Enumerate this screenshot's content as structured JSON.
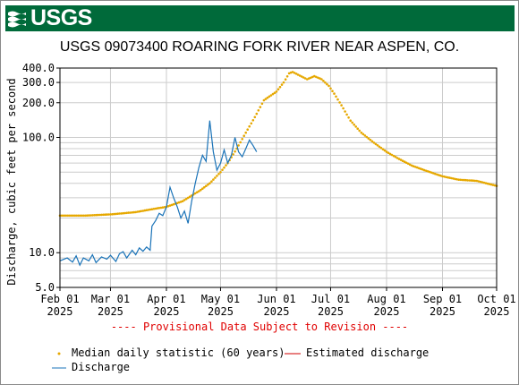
{
  "banner": {
    "logo_text": "USGS"
  },
  "title": "USGS 09073400 ROARING FORK RIVER NEAR ASPEN, CO.",
  "disclaimer": "---- Provisional Data Subject to Revision ----",
  "legend": {
    "median": "Median daily statistic (60 years)",
    "estimated": "Estimated discharge",
    "discharge": "Discharge"
  },
  "colors": {
    "median": "#e6a800",
    "discharge": "#1a73b8",
    "estimated": "#d00000",
    "banner": "#006a3a"
  },
  "chart_data": {
    "type": "line",
    "ylabel": "Discharge, cubic feet per second",
    "yscale": "log",
    "ylim": [
      5,
      400
    ],
    "y_ticks": [
      {
        "value": 5,
        "label": "5.0"
      },
      {
        "value": 10,
        "label": "10.0"
      },
      {
        "value": 100,
        "label": "100.0"
      },
      {
        "value": 200,
        "label": "200.0"
      },
      {
        "value": 300,
        "label": "300.0"
      },
      {
        "value": 400,
        "label": "400.0"
      }
    ],
    "xlim": [
      "2025-02-01",
      "2025-10-01"
    ],
    "x_ticks": [
      {
        "date": "2025-02-01",
        "label": [
          "Feb 01",
          "2025"
        ]
      },
      {
        "date": "2025-03-01",
        "label": [
          "Mar 01",
          "2025"
        ]
      },
      {
        "date": "2025-04-01",
        "label": [
          "Apr 01",
          "2025"
        ]
      },
      {
        "date": "2025-05-01",
        "label": [
          "May 01",
          "2025"
        ]
      },
      {
        "date": "2025-06-01",
        "label": [
          "Jun 01",
          "2025"
        ]
      },
      {
        "date": "2025-07-01",
        "label": [
          "Jul 01",
          "2025"
        ]
      },
      {
        "date": "2025-08-01",
        "label": [
          "Aug 01",
          "2025"
        ]
      },
      {
        "date": "2025-09-01",
        "label": [
          "Sep 01",
          "2025"
        ]
      },
      {
        "date": "2025-10-01",
        "label": [
          "Oct 01",
          "2025"
        ]
      }
    ],
    "grid": true,
    "series": [
      {
        "name": "Median daily statistic (60 years)",
        "style": "dots",
        "points": [
          [
            "2025-02-01",
            21
          ],
          [
            "2025-02-15",
            21
          ],
          [
            "2025-03-01",
            21.5
          ],
          [
            "2025-03-15",
            22.5
          ],
          [
            "2025-03-25",
            24
          ],
          [
            "2025-04-01",
            25
          ],
          [
            "2025-04-10",
            28
          ],
          [
            "2025-04-20",
            35
          ],
          [
            "2025-04-25",
            40
          ],
          [
            "2025-05-01",
            50
          ],
          [
            "2025-05-05",
            60
          ],
          [
            "2025-05-10",
            80
          ],
          [
            "2025-05-15",
            110
          ],
          [
            "2025-05-20",
            150
          ],
          [
            "2025-05-25",
            210
          ],
          [
            "2025-06-01",
            250
          ],
          [
            "2025-06-05",
            300
          ],
          [
            "2025-06-08",
            360
          ],
          [
            "2025-06-10",
            370
          ],
          [
            "2025-06-13",
            350
          ],
          [
            "2025-06-18",
            320
          ],
          [
            "2025-06-22",
            340
          ],
          [
            "2025-06-26",
            320
          ],
          [
            "2025-06-30",
            280
          ],
          [
            "2025-07-03",
            240
          ],
          [
            "2025-07-07",
            190
          ],
          [
            "2025-07-12",
            140
          ],
          [
            "2025-07-18",
            110
          ],
          [
            "2025-07-25",
            90
          ],
          [
            "2025-08-01",
            75
          ],
          [
            "2025-08-08",
            65
          ],
          [
            "2025-08-15",
            57
          ],
          [
            "2025-08-22",
            52
          ],
          [
            "2025-09-01",
            46
          ],
          [
            "2025-09-10",
            43
          ],
          [
            "2025-09-20",
            42
          ],
          [
            "2025-10-01",
            38
          ]
        ]
      },
      {
        "name": "Discharge",
        "style": "line",
        "points": [
          [
            "2025-02-01",
            8.5
          ],
          [
            "2025-02-05",
            9.0
          ],
          [
            "2025-02-08",
            8.3
          ],
          [
            "2025-02-10",
            9.4
          ],
          [
            "2025-02-12",
            7.8
          ],
          [
            "2025-02-14",
            9.0
          ],
          [
            "2025-02-17",
            8.5
          ],
          [
            "2025-02-19",
            9.6
          ],
          [
            "2025-02-21",
            8.2
          ],
          [
            "2025-02-24",
            9.2
          ],
          [
            "2025-02-27",
            8.8
          ],
          [
            "2025-03-01",
            9.5
          ],
          [
            "2025-03-04",
            8.4
          ],
          [
            "2025-03-06",
            9.8
          ],
          [
            "2025-03-08",
            10.2
          ],
          [
            "2025-03-10",
            9.0
          ],
          [
            "2025-03-13",
            10.5
          ],
          [
            "2025-03-15",
            9.6
          ],
          [
            "2025-03-17",
            11.0
          ],
          [
            "2025-03-19",
            10.3
          ],
          [
            "2025-03-21",
            11.2
          ],
          [
            "2025-03-23",
            10.5
          ],
          [
            "2025-03-24",
            17
          ],
          [
            "2025-03-26",
            19
          ],
          [
            "2025-03-28",
            22
          ],
          [
            "2025-03-30",
            21
          ],
          [
            "2025-04-01",
            25
          ],
          [
            "2025-04-03",
            37
          ],
          [
            "2025-04-05",
            30
          ],
          [
            "2025-04-07",
            25
          ],
          [
            "2025-04-09",
            20
          ],
          [
            "2025-04-11",
            23
          ],
          [
            "2025-04-13",
            18
          ],
          [
            "2025-04-15",
            28
          ],
          [
            "2025-04-17",
            40
          ],
          [
            "2025-04-19",
            55
          ],
          [
            "2025-04-21",
            70
          ],
          [
            "2025-04-23",
            62
          ],
          [
            "2025-04-25",
            140
          ],
          [
            "2025-04-27",
            75
          ],
          [
            "2025-04-29",
            52
          ],
          [
            "2025-05-01",
            60
          ],
          [
            "2025-05-03",
            78
          ],
          [
            "2025-05-05",
            60
          ],
          [
            "2025-05-07",
            70
          ],
          [
            "2025-05-09",
            100
          ],
          [
            "2025-05-11",
            75
          ],
          [
            "2025-05-13",
            68
          ],
          [
            "2025-05-15",
            80
          ],
          [
            "2025-05-17",
            95
          ],
          [
            "2025-05-19",
            85
          ],
          [
            "2025-05-21",
            75
          ]
        ]
      }
    ]
  }
}
